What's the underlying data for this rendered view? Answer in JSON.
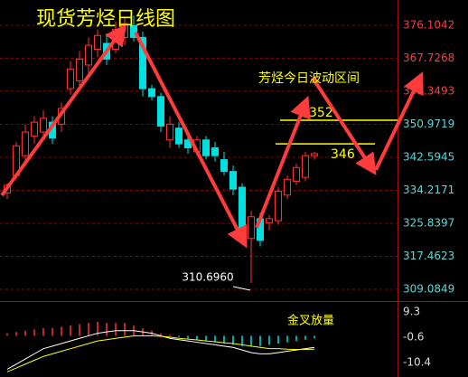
{
  "chart_data": [
    {
      "type": "candlestick",
      "title": "现货芳烃日线图",
      "annotation": "芳烃今日波动区间",
      "ylim": [
        306.8,
        382.5
      ],
      "yticks": [
        376.1042,
        367.7268,
        359.3493,
        350.9719,
        342.5945,
        334.2171,
        325.8397,
        317.4623,
        309.0849
      ],
      "ytick_colors": [
        "#ff3c3c",
        "#ff3c3c",
        "#ff3c3c",
        "#5ad8d8",
        "#5ad8d8",
        "#5ad8d8",
        "#5ad8d8",
        "#5ad8d8",
        "#5ad8d8"
      ],
      "grid": true,
      "up_color": "#ff3232",
      "down_color": "#00e0e0",
      "open": [
        333.5,
        338,
        343,
        348,
        349,
        351.5,
        351,
        360,
        362,
        366,
        370,
        371.5,
        370,
        373,
        376,
        373,
        360,
        358,
        347,
        350,
        347,
        344,
        347,
        345,
        342,
        339,
        335,
        322,
        327,
        326,
        326.5,
        333,
        336.5,
        337.5,
        343
      ],
      "high": [
        336,
        346.5,
        351,
        353,
        354.5,
        353,
        356.5,
        367,
        369.5,
        373,
        375,
        374,
        377,
        378,
        378.5,
        374.5,
        361,
        359,
        353,
        351.5,
        348,
        348,
        348,
        346.5,
        344,
        340.5,
        336,
        329,
        328.5,
        328,
        335,
        338,
        341,
        344,
        344
      ],
      "low": [
        332,
        337,
        341,
        346,
        347,
        346,
        349,
        358.5,
        360,
        364,
        368,
        366,
        369,
        371,
        372,
        358,
        357,
        349,
        345,
        345,
        343.5,
        343,
        342,
        341.5,
        338,
        333,
        320.5,
        310.696,
        320,
        324,
        325.5,
        332,
        335.5,
        336.5,
        342
      ],
      "close": [
        335.5,
        345.5,
        349,
        351.5,
        352.5,
        347.5,
        355,
        365,
        367.5,
        371,
        373.5,
        367.5,
        375,
        376.5,
        373,
        360,
        358,
        350.5,
        351,
        346,
        345,
        347,
        343,
        343,
        339,
        334.5,
        322,
        327.5,
        321.5,
        327,
        334,
        337,
        340,
        343,
        343.5
      ],
      "low_annotation": {
        "value": 310.696,
        "label": "310.6960"
      },
      "levels": [
        352,
        346
      ],
      "level_color": "#ffff00"
    },
    {
      "type": "macd",
      "title": "金叉放量",
      "ylim": [
        -16,
        12.8
      ],
      "yticks": [
        9.3,
        -0.6,
        -10.4
      ],
      "up_color": "#ff3232",
      "down_color": "#00e0e0",
      "values": [
        1,
        1.5,
        2,
        2.5,
        3,
        3,
        3.5,
        4,
        4.5,
        5,
        5.5,
        5,
        5,
        5,
        4,
        3,
        2,
        1,
        0.5,
        -0.5,
        -1,
        -1.5,
        -2,
        -2.5,
        -3,
        -3.5,
        -4,
        -4,
        -4,
        -3.5,
        -3,
        -2.5,
        -2,
        -1.5,
        -1
      ],
      "series": [
        {
          "color": "#ffffff",
          "values": [
            -13,
            -11,
            -9,
            -7,
            -5,
            -4,
            -3,
            -2,
            -1,
            0,
            1,
            1.5,
            2,
            2,
            2,
            1.5,
            1,
            0,
            -1,
            -1.5,
            -2,
            -2.5,
            -3,
            -3.5,
            -4,
            -4.5,
            -5.5,
            -6.5,
            -7,
            -7,
            -6.5,
            -6,
            -5.5,
            -5,
            -4.5
          ]
        },
        {
          "color": "#ffff00",
          "values": [
            -14,
            -12.5,
            -11,
            -9.5,
            -8,
            -7,
            -6,
            -5,
            -4,
            -3,
            -2,
            -1.5,
            -1,
            -0.5,
            0,
            0,
            0,
            -0.2,
            -0.5,
            -1,
            -1.3,
            -1.6,
            -2,
            -2.3,
            -2.7,
            -3,
            -3.5,
            -4,
            -4.5,
            -5,
            -5,
            -5.2,
            -5.3,
            -5.3,
            -5.2
          ]
        }
      ]
    }
  ]
}
